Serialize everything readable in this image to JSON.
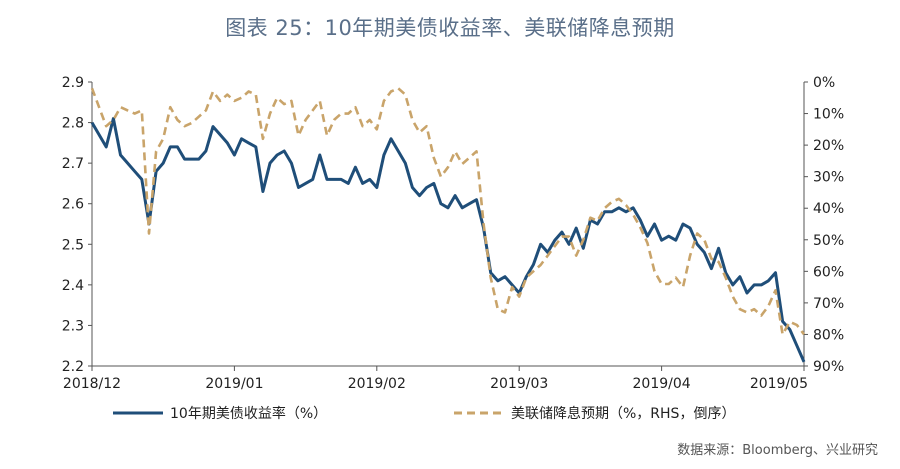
{
  "title": "图表 25：10年期美债收益率、美联储降息预期",
  "source": "数据来源：Bloomberg、兴业研究",
  "colors": {
    "left_series": "#1f4e79",
    "right_series": "#c9a46a",
    "title": "#5a6f89"
  },
  "chart_data": {
    "type": "line",
    "left_axis": {
      "ylim": [
        2.2,
        2.9
      ],
      "ticks": [
        "2.2",
        "2.3",
        "2.4",
        "2.5",
        "2.6",
        "2.7",
        "2.8",
        "2.9"
      ]
    },
    "right_axis": {
      "ylim": [
        0,
        90
      ],
      "reversed": true,
      "ticks": [
        "0%",
        "10%",
        "20%",
        "30%",
        "40%",
        "50%",
        "60%",
        "70%",
        "80%",
        "90%"
      ]
    },
    "x_ticks": [
      "2018/12",
      "2019/01",
      "2019/02",
      "2019/03",
      "2019/04",
      "2019/05"
    ],
    "grid": false,
    "legend": {
      "placement": "bottom"
    },
    "series": [
      {
        "name": "10年期美债收益率（%）",
        "axis": "left",
        "style": "solid",
        "x": [
          0,
          1,
          2,
          3,
          4,
          5,
          6,
          7,
          8,
          9,
          10,
          11,
          12,
          13,
          14,
          15,
          16,
          17,
          18,
          19,
          20,
          21,
          22,
          23,
          24,
          25,
          26,
          27,
          28,
          29,
          30,
          31,
          32,
          33,
          34,
          35,
          36,
          37,
          38,
          39,
          40,
          41,
          42,
          43,
          44,
          45,
          46,
          47,
          48,
          49,
          50,
          51,
          52,
          53,
          54,
          55,
          56,
          57,
          58,
          59,
          60,
          61,
          62,
          63,
          64,
          65,
          66,
          67,
          68,
          69,
          70,
          71,
          72,
          73,
          74,
          75,
          76,
          77,
          78,
          79,
          80,
          81,
          82,
          83,
          84,
          85,
          86,
          87,
          88,
          89,
          90,
          91,
          92,
          93,
          94,
          95,
          96,
          97,
          98,
          99,
          100
        ],
        "values": [
          2.8,
          2.77,
          2.74,
          2.81,
          2.72,
          2.7,
          2.68,
          2.66,
          2.55,
          2.68,
          2.7,
          2.74,
          2.74,
          2.71,
          2.71,
          2.71,
          2.73,
          2.79,
          2.77,
          2.75,
          2.72,
          2.76,
          2.75,
          2.74,
          2.63,
          2.7,
          2.72,
          2.73,
          2.7,
          2.64,
          2.65,
          2.66,
          2.72,
          2.66,
          2.66,
          2.66,
          2.65,
          2.69,
          2.65,
          2.66,
          2.64,
          2.72,
          2.76,
          2.73,
          2.7,
          2.64,
          2.62,
          2.64,
          2.65,
          2.6,
          2.59,
          2.62,
          2.59,
          2.6,
          2.61,
          2.54,
          2.43,
          2.41,
          2.42,
          2.4,
          2.38,
          2.42,
          2.45,
          2.5,
          2.48,
          2.51,
          2.53,
          2.5,
          2.54,
          2.49,
          2.56,
          2.55,
          2.58,
          2.58,
          2.59,
          2.58,
          2.59,
          2.56,
          2.52,
          2.55,
          2.51,
          2.52,
          2.51,
          2.55,
          2.54,
          2.5,
          2.48,
          2.44,
          2.49,
          2.43,
          2.4,
          2.42,
          2.38,
          2.4,
          2.4,
          2.41,
          2.43,
          2.31,
          2.29,
          2.25,
          2.21
        ]
      },
      {
        "name": "美联储降息预期（%，RHS，倒序）",
        "axis": "right",
        "style": "dashed",
        "x": [
          0,
          1,
          2,
          3,
          4,
          5,
          6,
          7,
          8,
          9,
          10,
          11,
          12,
          13,
          14,
          15,
          16,
          17,
          18,
          19,
          20,
          21,
          22,
          23,
          24,
          25,
          26,
          27,
          28,
          29,
          30,
          31,
          32,
          33,
          34,
          35,
          36,
          37,
          38,
          39,
          40,
          41,
          42,
          43,
          44,
          45,
          46,
          47,
          48,
          49,
          50,
          51,
          52,
          53,
          54,
          55,
          56,
          57,
          58,
          59,
          60,
          61,
          62,
          63,
          64,
          65,
          66,
          67,
          68,
          69,
          70,
          71,
          72,
          73,
          74,
          75,
          76,
          77,
          78,
          79,
          80,
          81,
          82,
          83,
          84,
          85,
          86,
          87,
          88,
          89,
          90,
          91,
          92,
          93,
          94,
          95,
          96,
          97,
          98,
          99,
          100
        ],
        "values": [
          2,
          8,
          14,
          12,
          8,
          9,
          10,
          9,
          48,
          22,
          18,
          8,
          12,
          14,
          13,
          11,
          9,
          3,
          6,
          4,
          6,
          5,
          3,
          4,
          18,
          10,
          5,
          7,
          6,
          17,
          12,
          9,
          6,
          17,
          12,
          10,
          10,
          8,
          14,
          12,
          15,
          6,
          3,
          2,
          4,
          12,
          16,
          14,
          24,
          30,
          27,
          22,
          26,
          24,
          22,
          45,
          62,
          72,
          73,
          65,
          68,
          62,
          60,
          58,
          55,
          52,
          49,
          49,
          55,
          50,
          43,
          44,
          40,
          38,
          37,
          39,
          42,
          46,
          51,
          60,
          64,
          64,
          62,
          65,
          55,
          48,
          50,
          56,
          57,
          62,
          68,
          72,
          73,
          72,
          74,
          71,
          66,
          80,
          76,
          77,
          80
        ]
      }
    ]
  }
}
